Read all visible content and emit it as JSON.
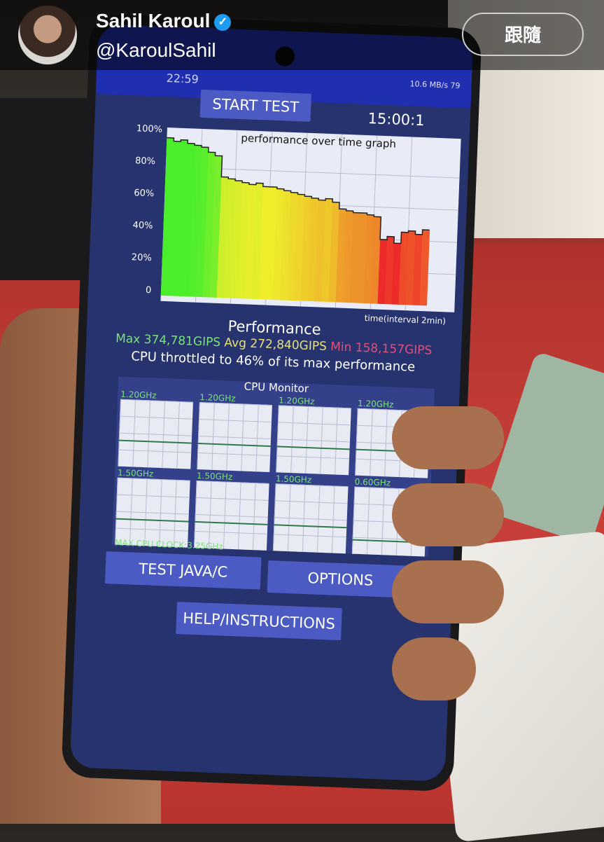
{
  "header": {
    "name": "Sahil Karoul",
    "handle": "@KaroulSahil",
    "follow_label": "跟隨",
    "verified_icon": "verified-badge-icon",
    "verified_color": "#1d9bf0"
  },
  "phone": {
    "status_time": "22:59",
    "status_right": "10.6 MB/s  79",
    "start_button": "START TEST",
    "timer": "15:00:1",
    "graph": {
      "title": "performance over time graph",
      "y_ticks": [
        "100%",
        "80%",
        "60%",
        "40%",
        "20%",
        "0"
      ],
      "x_label": "time(interval 2min)",
      "performance_percent": [
        98,
        96,
        97,
        95,
        94,
        93,
        90,
        88,
        75,
        74,
        73,
        72,
        71,
        72,
        70,
        70,
        69,
        68,
        67,
        66,
        65,
        64,
        63,
        64,
        62,
        58,
        57,
        56,
        56,
        55,
        54,
        40,
        42,
        38,
        45,
        46,
        44,
        47
      ]
    },
    "perf_title": "Performance",
    "max": "Max 374,781GIPS",
    "avg": "Avg 272,840GIPS",
    "min": "Min 158,157GIPS",
    "throttle": "CPU throttled to 46% of its max performance",
    "colors": {
      "max": "#7be27b",
      "avg": "#e5e07a",
      "min": "#e0507a"
    },
    "cpu_monitor": {
      "title": "CPU Monitor",
      "cores": [
        "1.20GHz",
        "1.20GHz",
        "1.20GHz",
        "1.20GHz",
        "1.50GHz",
        "1.50GHz",
        "1.50GHz",
        "0.60GHz"
      ],
      "max_clock": "MAX CPU CLOCK:3.25GHz"
    },
    "test_java": "TEST JAVA/C",
    "options": "OPTIONS",
    "help": "HELP/INSTRUCTIONS"
  }
}
